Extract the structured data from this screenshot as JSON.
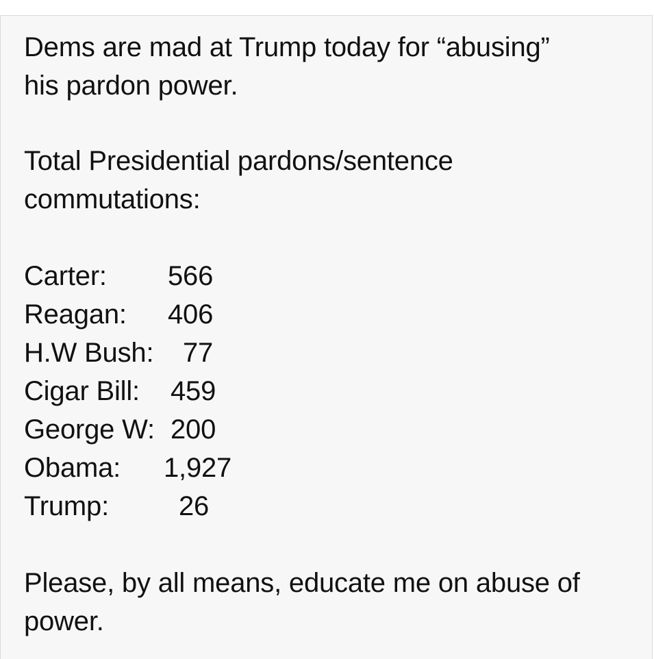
{
  "post": {
    "intro_lines": [
      "Dems are mad at Trump today for “abusing”",
      "his pardon power."
    ],
    "heading_lines": [
      "Total Presidential pardons/sentence",
      "commutations:"
    ],
    "tally": [
      {
        "name": "Carter:",
        "count": "566"
      },
      {
        "name": "Reagan:",
        "count": "406"
      },
      {
        "name": "H.W Bush:",
        "count": "77"
      },
      {
        "name": "Cigar Bill:",
        "count": "459"
      },
      {
        "name": "George W:",
        "count": "200"
      },
      {
        "name": "Obama:",
        "count": "1,927"
      },
      {
        "name": "Trump:",
        "count": "26"
      }
    ],
    "closing_lines": [
      "Please, by all means, educate me on abuse of",
      "power."
    ]
  }
}
